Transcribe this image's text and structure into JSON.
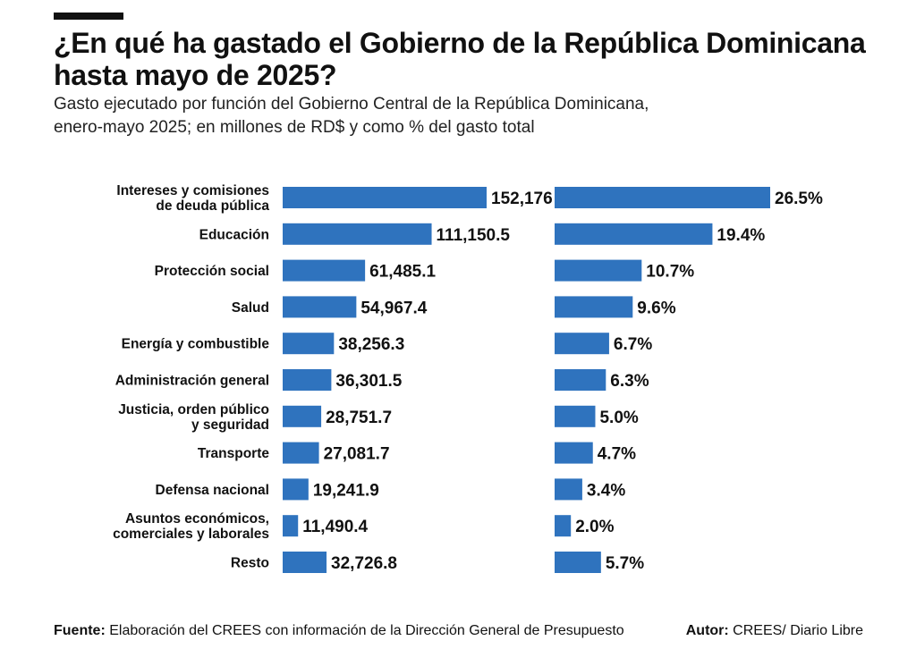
{
  "header": {
    "title": "¿En qué ha gastado el Gobierno de la República Dominicana hasta mayo de 2025?",
    "subtitle_line1": "Gasto ejecutado por función del Gobierno Central de la República Dominicana,",
    "subtitle_line2": "enero-mayo 2025; en millones de RD$ y como % del gasto total"
  },
  "footer": {
    "source_label": "Fuente:",
    "source_text": "Elaboración del CREES con información de la Dirección General de Presupuesto",
    "author_label": "Autor:",
    "author_text": "CREES/ Diario Libre"
  },
  "colors": {
    "bar": "#2f73be",
    "text": "#111111"
  },
  "chart_data": [
    {
      "type": "bar",
      "orientation": "horizontal",
      "unit": "millones de RD$",
      "categories": [
        "Intereses y comisiones de deuda pública",
        "Educación",
        "Protección social",
        "Salud",
        "Energía y combustible",
        "Administración general",
        "Justicia, orden público y seguridad",
        "Transporte",
        "Defensa nacional",
        "Asuntos económicos, comerciales y laborales",
        "Resto"
      ],
      "values": [
        152176,
        111150.5,
        61485.1,
        54967.4,
        38256.3,
        36301.5,
        28751.7,
        27081.7,
        19241.9,
        11490.4,
        32726.8
      ],
      "value_labels": [
        "152,176",
        "111,150.5",
        "61,485.1",
        "54,967.4",
        "38,256.3",
        "36,301.5",
        "28,751.7",
        "27,081.7",
        "19,241.9",
        "11,490.4",
        "32,726.8"
      ]
    },
    {
      "type": "bar",
      "orientation": "horizontal",
      "unit": "% del gasto total",
      "categories": [
        "Intereses y comisiones de deuda pública",
        "Educación",
        "Protección social",
        "Salud",
        "Energía y combustible",
        "Administración general",
        "Justicia, orden público y seguridad",
        "Transporte",
        "Defensa nacional",
        "Asuntos económicos, comerciales y laborales",
        "Resto"
      ],
      "values": [
        26.5,
        19.4,
        10.7,
        9.6,
        6.7,
        6.3,
        5.0,
        4.7,
        3.4,
        2.0,
        5.7
      ],
      "value_labels": [
        "26.5%",
        "19.4%",
        "10.7%",
        "9.6%",
        "6.7%",
        "6.3%",
        "5.0%",
        "4.7%",
        "3.4%",
        "2.0%",
        "5.7%"
      ]
    }
  ],
  "category_label_lines": [
    [
      "Intereses y comisiones",
      "de deuda pública"
    ],
    [
      "Educación"
    ],
    [
      "Protección social"
    ],
    [
      "Salud"
    ],
    [
      "Energía y combustible"
    ],
    [
      "Administración general"
    ],
    [
      "Justicia, orden público",
      "y seguridad"
    ],
    [
      "Transporte"
    ],
    [
      "Defensa nacional"
    ],
    [
      "Asuntos económicos,",
      "comerciales y laborales"
    ],
    [
      "Resto"
    ]
  ]
}
